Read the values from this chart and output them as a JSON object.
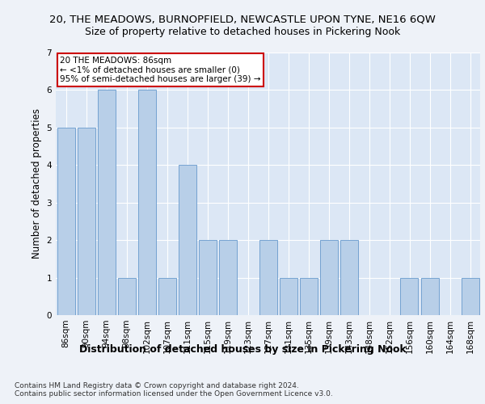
{
  "title": "20, THE MEADOWS, BURNOPFIELD, NEWCASTLE UPON TYNE, NE16 6QW",
  "subtitle": "Size of property relative to detached houses in Pickering Nook",
  "xlabel": "Distribution of detached houses by size in Pickering Nook",
  "ylabel": "Number of detached properties",
  "categories": [
    "86sqm",
    "90sqm",
    "94sqm",
    "98sqm",
    "102sqm",
    "107sqm",
    "111sqm",
    "115sqm",
    "119sqm",
    "123sqm",
    "127sqm",
    "131sqm",
    "135sqm",
    "139sqm",
    "143sqm",
    "148sqm",
    "152sqm",
    "156sqm",
    "160sqm",
    "164sqm",
    "168sqm"
  ],
  "values": [
    5,
    5,
    6,
    1,
    6,
    1,
    4,
    2,
    2,
    0,
    2,
    1,
    1,
    2,
    2,
    0,
    0,
    1,
    1,
    0,
    1
  ],
  "bar_color": "#b8cfe8",
  "bar_edge_color": "#6699cc",
  "annotation_box_text": "20 THE MEADOWS: 86sqm\n← <1% of detached houses are smaller (0)\n95% of semi-detached houses are larger (39) →",
  "annotation_box_color": "#ffffff",
  "annotation_box_edge_color": "#cc0000",
  "ylim": [
    0,
    7
  ],
  "yticks": [
    0,
    1,
    2,
    3,
    4,
    5,
    6,
    7
  ],
  "footer_text": "Contains HM Land Registry data © Crown copyright and database right 2024.\nContains public sector information licensed under the Open Government Licence v3.0.",
  "fig_background_color": "#eef2f8",
  "plot_background_color": "#dce7f5",
  "grid_color": "#ffffff",
  "title_fontsize": 9.5,
  "subtitle_fontsize": 9,
  "xlabel_fontsize": 9,
  "ylabel_fontsize": 8.5,
  "tick_fontsize": 7.5,
  "footer_fontsize": 6.5
}
